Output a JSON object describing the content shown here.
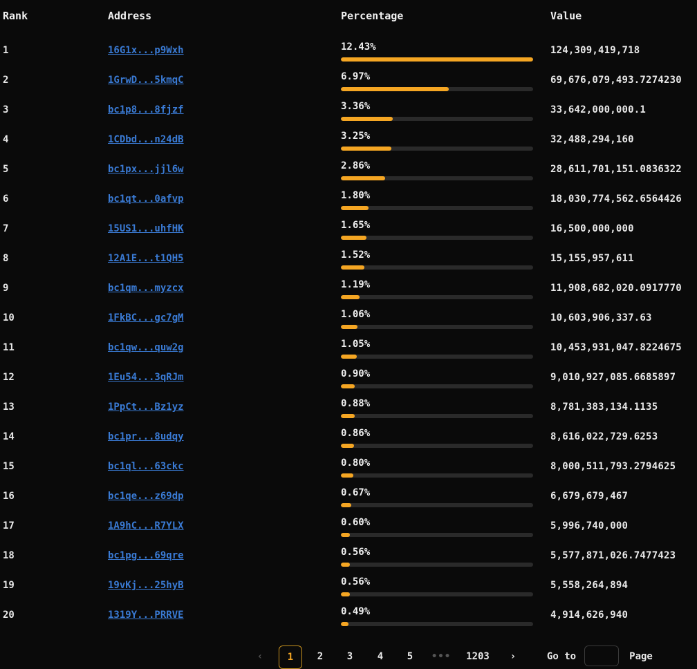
{
  "header": {
    "rank": "Rank",
    "address": "Address",
    "percentage": "Percentage",
    "value": "Value"
  },
  "rows": [
    {
      "rank": "1",
      "address": "16G1x...p9Wxh",
      "percentage": "12.43%",
      "pct": 12.43,
      "value": "124,309,419,718"
    },
    {
      "rank": "2",
      "address": "1GrwD...5kmqC",
      "percentage": "6.97%",
      "pct": 6.97,
      "value": "69,676,079,493.7274230"
    },
    {
      "rank": "3",
      "address": "bc1p8...8fjzf",
      "percentage": "3.36%",
      "pct": 3.36,
      "value": "33,642,000,000.1"
    },
    {
      "rank": "4",
      "address": "1CDbd...n24dB",
      "percentage": "3.25%",
      "pct": 3.25,
      "value": "32,488,294,160"
    },
    {
      "rank": "5",
      "address": "bc1px...jjl6w",
      "percentage": "2.86%",
      "pct": 2.86,
      "value": "28,611,701,151.0836322"
    },
    {
      "rank": "6",
      "address": "bc1qt...0afvp",
      "percentage": "1.80%",
      "pct": 1.8,
      "value": "18,030,774,562.6564426"
    },
    {
      "rank": "7",
      "address": "15US1...uhfHK",
      "percentage": "1.65%",
      "pct": 1.65,
      "value": "16,500,000,000"
    },
    {
      "rank": "8",
      "address": "12A1E...t1QH5",
      "percentage": "1.52%",
      "pct": 1.52,
      "value": "15,155,957,611"
    },
    {
      "rank": "9",
      "address": "bc1qm...myzcx",
      "percentage": "1.19%",
      "pct": 1.19,
      "value": "11,908,682,020.0917770"
    },
    {
      "rank": "10",
      "address": "1FkBC...gc7gM",
      "percentage": "1.06%",
      "pct": 1.06,
      "value": "10,603,906,337.63"
    },
    {
      "rank": "11",
      "address": "bc1qw...quw2g",
      "percentage": "1.05%",
      "pct": 1.05,
      "value": "10,453,931,047.8224675"
    },
    {
      "rank": "12",
      "address": "1Eu54...3qRJm",
      "percentage": "0.90%",
      "pct": 0.9,
      "value": "9,010,927,085.6685897"
    },
    {
      "rank": "13",
      "address": "1PpCt...Bz1yz",
      "percentage": "0.88%",
      "pct": 0.88,
      "value": "8,781,383,134.1135"
    },
    {
      "rank": "14",
      "address": "bc1pr...8udqy",
      "percentage": "0.86%",
      "pct": 0.86,
      "value": "8,616,022,729.6253"
    },
    {
      "rank": "15",
      "address": "bc1ql...63ckc",
      "percentage": "0.80%",
      "pct": 0.8,
      "value": "8,000,511,793.2794625"
    },
    {
      "rank": "16",
      "address": "bc1qe...z69dp",
      "percentage": "0.67%",
      "pct": 0.67,
      "value": "6,679,679,467"
    },
    {
      "rank": "17",
      "address": "1A9hC...R7YLX",
      "percentage": "0.60%",
      "pct": 0.6,
      "value": "5,996,740,000"
    },
    {
      "rank": "18",
      "address": "bc1pg...69qre",
      "percentage": "0.56%",
      "pct": 0.56,
      "value": "5,577,871,026.7477423"
    },
    {
      "rank": "19",
      "address": "19vKj...25hyB",
      "percentage": "0.56%",
      "pct": 0.56,
      "value": "5,558,264,894"
    },
    {
      "rank": "20",
      "address": "1319Y...PRRVE",
      "percentage": "0.49%",
      "pct": 0.49,
      "value": "4,914,626,940"
    }
  ],
  "bar": {
    "max_pct": 12.43,
    "fill_color": "#f5a623",
    "track_color": "#2a2a2a"
  },
  "pagination": {
    "prev_icon": "chevron-left-icon",
    "prev_glyph": "‹",
    "current": "1",
    "pages": [
      "2",
      "3",
      "4",
      "5"
    ],
    "ellipsis": "•••",
    "last": "1203",
    "next_icon": "chevron-right-icon",
    "next_glyph": "›",
    "goto_label": "Go to",
    "goto_value": "",
    "page_label": "Page"
  },
  "colors": {
    "background": "#0a0a0a",
    "link": "#3a7bd5",
    "accent": "#f5a623"
  }
}
